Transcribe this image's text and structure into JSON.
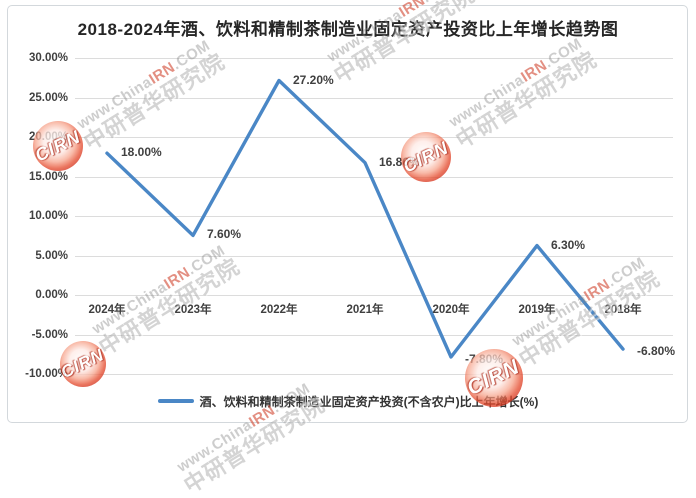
{
  "chart_data": {
    "type": "line",
    "title": "2018-2024年酒、饮料和精制茶制造业固定资产投资比上年增长趋势图",
    "categories": [
      "2024年",
      "2023年",
      "2022年",
      "2021年",
      "2020年",
      "2019年",
      "2018年"
    ],
    "series": [
      {
        "name": "酒、饮料和精制茶制造业固定资产投资(不含农户)比上年增长(%)",
        "values": [
          18.0,
          7.6,
          27.2,
          16.8,
          -7.8,
          6.3,
          -6.8
        ]
      }
    ],
    "point_labels": [
      "18.00%",
      "7.60%",
      "27.20%",
      "16.80%",
      "-7.80%",
      "6.30%",
      "-6.80%"
    ],
    "yticks": [
      {
        "label": "30.00%",
        "value": 30
      },
      {
        "label": "25.00%",
        "value": 25
      },
      {
        "label": "20.00%",
        "value": 20
      },
      {
        "label": "15.00%",
        "value": 15
      },
      {
        "label": "10.00%",
        "value": 10
      },
      {
        "label": "5.00%",
        "value": 5
      },
      {
        "label": "0.00%",
        "value": 0
      },
      {
        "label": "-5.00%",
        "value": -5
      },
      {
        "label": "-10.00%",
        "value": -10
      }
    ],
    "ylim": [
      -10,
      30
    ],
    "xlabel": "",
    "ylabel": "",
    "grid": true,
    "legend_position": "bottom"
  },
  "colors": {
    "line": "#4a87c6",
    "grid": "#dcdcdc",
    "title_text": "#262626",
    "axis_text": "#404040",
    "watermark_red": "#d0452e"
  },
  "watermark": {
    "url_prefix": "www.China",
    "url_highlight": "IRN",
    "url_suffix": ".COM",
    "org_name": "中研普华研究院",
    "logo_text": "CIRN"
  }
}
